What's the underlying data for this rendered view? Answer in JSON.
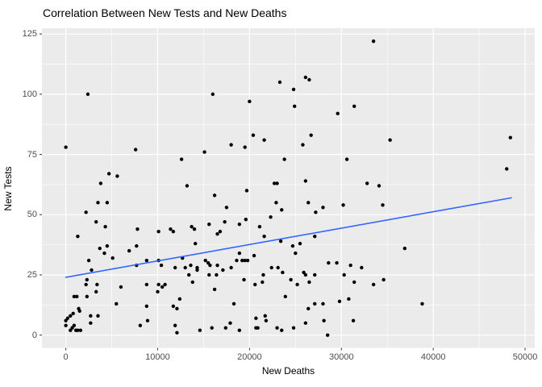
{
  "chart_data": {
    "type": "scatter",
    "title": "Correlation Between New Tests and New Deaths",
    "xlabel": "New Deaths",
    "ylabel": "New Tests",
    "x_ticks": [
      0,
      10000,
      20000,
      30000,
      40000,
      50000
    ],
    "y_ticks": [
      0,
      25,
      50,
      75,
      100,
      125
    ],
    "x_minor_ticks": [
      5000,
      15000,
      25000,
      35000,
      45000
    ],
    "y_minor_ticks": [
      12.5,
      37.5,
      62.5,
      87.5,
      112.5
    ],
    "xlim": [
      -2600,
      51050
    ],
    "ylim": [
      -5.3,
      127.4
    ],
    "grid": "major-and-minor",
    "legend": "none",
    "colors": {
      "panel_bg": "#EBEBEB",
      "grid_major": "#FFFFFF",
      "grid_minor": "#FFFFFF",
      "point": "#000000",
      "trend_line": "#3366FF",
      "axis_text": "#4D4D4D",
      "title_text": "#000000",
      "tick_mark": "#333333"
    },
    "trend_line": {
      "type": "linear",
      "x1": 0,
      "y1": 24,
      "x2": 48500,
      "y2": 57
    },
    "points": [
      [
        33500,
        122
      ],
      [
        26100,
        107
      ],
      [
        26500,
        106
      ],
      [
        23300,
        105
      ],
      [
        24800,
        102
      ],
      [
        2400,
        100
      ],
      [
        16000,
        100
      ],
      [
        20000,
        97
      ],
      [
        24900,
        95
      ],
      [
        31400,
        95
      ],
      [
        29600,
        92
      ],
      [
        20400,
        83
      ],
      [
        26700,
        83
      ],
      [
        48400,
        82
      ],
      [
        35300,
        81
      ],
      [
        21600,
        81
      ],
      [
        18000,
        79
      ],
      [
        0,
        78
      ],
      [
        19500,
        78
      ],
      [
        25800,
        79
      ],
      [
        7600,
        77
      ],
      [
        15100,
        76
      ],
      [
        12600,
        73
      ],
      [
        23800,
        73
      ],
      [
        30600,
        73
      ],
      [
        48000,
        69
      ],
      [
        4700,
        67
      ],
      [
        5600,
        66
      ],
      [
        26100,
        64
      ],
      [
        3800,
        63
      ],
      [
        13200,
        62
      ],
      [
        22700,
        63
      ],
      [
        23000,
        63
      ],
      [
        32800,
        63
      ],
      [
        34100,
        62
      ],
      [
        19700,
        60
      ],
      [
        16200,
        58
      ],
      [
        3500,
        55
      ],
      [
        4500,
        55
      ],
      [
        22900,
        55
      ],
      [
        26400,
        55
      ],
      [
        30200,
        54
      ],
      [
        34500,
        54
      ],
      [
        17500,
        53
      ],
      [
        28000,
        53
      ],
      [
        23500,
        52
      ],
      [
        27200,
        51
      ],
      [
        2200,
        51
      ],
      [
        22300,
        49
      ],
      [
        19600,
        48
      ],
      [
        3300,
        47
      ],
      [
        17300,
        47
      ],
      [
        15600,
        46
      ],
      [
        18900,
        46
      ],
      [
        21100,
        45
      ],
      [
        4300,
        45
      ],
      [
        13700,
        45
      ],
      [
        14000,
        44
      ],
      [
        11400,
        44
      ],
      [
        7800,
        44
      ],
      [
        10100,
        43
      ],
      [
        11700,
        43
      ],
      [
        16800,
        43
      ],
      [
        16500,
        42
      ],
      [
        21600,
        41
      ],
      [
        27100,
        41
      ],
      [
        1300,
        41
      ],
      [
        23400,
        39
      ],
      [
        14100,
        38
      ],
      [
        25500,
        38
      ],
      [
        24700,
        37
      ],
      [
        7700,
        37
      ],
      [
        4500,
        37
      ],
      [
        36900,
        36
      ],
      [
        3700,
        36
      ],
      [
        6900,
        35
      ],
      [
        4200,
        34
      ],
      [
        18900,
        34
      ],
      [
        25000,
        34
      ],
      [
        20500,
        33
      ],
      [
        5100,
        32
      ],
      [
        12700,
        32
      ],
      [
        2500,
        31
      ],
      [
        8800,
        31
      ],
      [
        10100,
        31
      ],
      [
        15200,
        31
      ],
      [
        18600,
        31
      ],
      [
        19200,
        31
      ],
      [
        19500,
        31
      ],
      [
        19800,
        31
      ],
      [
        15500,
        30
      ],
      [
        28600,
        30
      ],
      [
        29500,
        30
      ],
      [
        7700,
        29
      ],
      [
        10400,
        29
      ],
      [
        13600,
        29
      ],
      [
        15700,
        29
      ],
      [
        16500,
        29
      ],
      [
        31000,
        29
      ],
      [
        11900,
        28
      ],
      [
        13000,
        28
      ],
      [
        14300,
        28
      ],
      [
        18000,
        28
      ],
      [
        22400,
        28
      ],
      [
        23100,
        28
      ],
      [
        32200,
        28
      ],
      [
        2800,
        27
      ],
      [
        14300,
        27
      ],
      [
        17100,
        27
      ],
      [
        23600,
        26
      ],
      [
        25900,
        26
      ],
      [
        13400,
        25
      ],
      [
        15600,
        25
      ],
      [
        16400,
        25
      ],
      [
        21500,
        25
      ],
      [
        26100,
        25
      ],
      [
        27100,
        25
      ],
      [
        30300,
        25
      ],
      [
        2300,
        23
      ],
      [
        19400,
        23
      ],
      [
        24500,
        23
      ],
      [
        34600,
        23
      ],
      [
        13800,
        22
      ],
      [
        21400,
        22
      ],
      [
        26500,
        22
      ],
      [
        31400,
        22
      ],
      [
        2200,
        21
      ],
      [
        3400,
        21
      ],
      [
        20600,
        21
      ],
      [
        25200,
        21
      ],
      [
        33500,
        21
      ],
      [
        8800,
        21
      ],
      [
        10800,
        21
      ],
      [
        10100,
        21
      ],
      [
        6000,
        20
      ],
      [
        10500,
        20
      ],
      [
        16200,
        19
      ],
      [
        3300,
        18
      ],
      [
        10000,
        18
      ],
      [
        23900,
        16
      ],
      [
        900,
        16
      ],
      [
        1200,
        16
      ],
      [
        2300,
        16
      ],
      [
        12400,
        15
      ],
      [
        29800,
        14
      ],
      [
        30800,
        15
      ],
      [
        5500,
        13
      ],
      [
        18300,
        13
      ],
      [
        27100,
        13
      ],
      [
        28000,
        13
      ],
      [
        38800,
        13
      ],
      [
        8800,
        12
      ],
      [
        11700,
        12
      ],
      [
        1400,
        11
      ],
      [
        12100,
        11
      ],
      [
        26400,
        11
      ],
      [
        1500,
        10
      ],
      [
        800,
        9
      ],
      [
        2700,
        8
      ],
      [
        3500,
        8
      ],
      [
        500,
        8
      ],
      [
        21700,
        8
      ],
      [
        200,
        7
      ],
      [
        20700,
        7
      ],
      [
        0,
        6
      ],
      [
        21800,
        6
      ],
      [
        28100,
        6
      ],
      [
        31300,
        6
      ],
      [
        8900,
        6
      ],
      [
        2700,
        5
      ],
      [
        17900,
        5
      ],
      [
        26100,
        5
      ],
      [
        0,
        4
      ],
      [
        900,
        4
      ],
      [
        8100,
        4
      ],
      [
        11900,
        4
      ],
      [
        700,
        3
      ],
      [
        15900,
        3
      ],
      [
        17400,
        3
      ],
      [
        20700,
        3
      ],
      [
        20900,
        3
      ],
      [
        23000,
        3
      ],
      [
        24800,
        3
      ],
      [
        500,
        2
      ],
      [
        1100,
        2
      ],
      [
        1300,
        2
      ],
      [
        1600,
        2
      ],
      [
        14600,
        2
      ],
      [
        18900,
        2
      ],
      [
        23500,
        2
      ],
      [
        12100,
        1
      ],
      [
        28500,
        0
      ]
    ]
  }
}
